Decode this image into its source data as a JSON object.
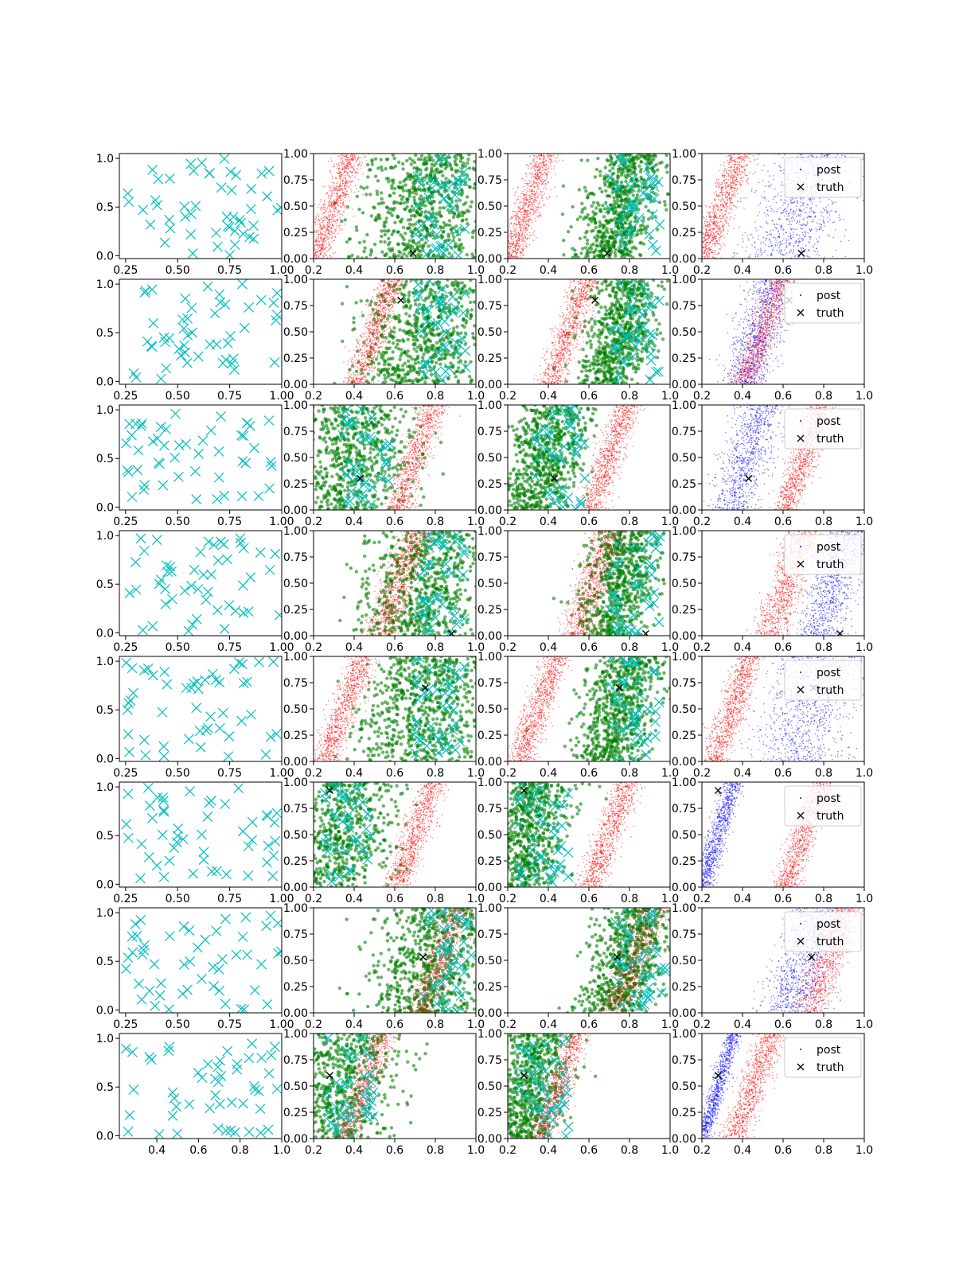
{
  "figure": {
    "rows": 8,
    "cols": 4,
    "colors": {
      "design": "#00bfbf",
      "prior": "#ff0000",
      "likelihood": "#008000",
      "posterior": "#0000ff",
      "truth": "#000000"
    },
    "legend": {
      "post_label": "post",
      "truth_label": "truth",
      "placement": "upper right"
    }
  },
  "chart_data": {
    "type": "scatter",
    "design_axes": {
      "xlim": [
        0.22,
        1.0
      ],
      "ylim": [
        -0.03,
        1.05
      ],
      "xticks": [
        "0.25",
        "0.50",
        "0.75",
        "1.00"
      ],
      "xticks_last_row": [
        "0.4",
        "0.6",
        "0.8",
        "1.0"
      ],
      "yticks": [
        "0.0",
        "0.5",
        "1.0"
      ]
    },
    "param_axes": {
      "xlim": [
        0.2,
        1.0
      ],
      "ylim": [
        0.0,
        1.0
      ],
      "xticks": [
        "0.2",
        "0.4",
        "0.6",
        "0.8",
        "1.0"
      ],
      "yticks": [
        "0.00",
        "0.25",
        "0.50",
        "0.75",
        "1.00"
      ]
    },
    "rows": [
      {
        "truth": [
          0.69,
          0.05
        ],
        "red": [
          0.3,
          0.07
        ],
        "green": [
          0.75,
          0.3
        ],
        "blue": [
          0.68,
          0.22
        ]
      },
      {
        "truth": [
          0.63,
          0.8
        ],
        "red": [
          0.5,
          0.07
        ],
        "green": [
          0.75,
          0.3
        ],
        "blue": [
          0.48,
          0.12
        ]
      },
      {
        "truth": [
          0.43,
          0.3
        ],
        "red": [
          0.7,
          0.07
        ],
        "green": [
          0.38,
          0.3
        ],
        "blue": [
          0.42,
          0.12
        ]
      },
      {
        "truth": [
          0.88,
          0.02
        ],
        "red": [
          0.62,
          0.09
        ],
        "green": [
          0.75,
          0.3
        ],
        "blue": [
          0.85,
          0.12
        ]
      },
      {
        "truth": [
          0.75,
          0.7
        ],
        "red": [
          0.35,
          0.07
        ],
        "green": [
          0.75,
          0.3
        ],
        "blue": [
          0.72,
          0.22
        ]
      },
      {
        "truth": [
          0.28,
          0.92
        ],
        "red": [
          0.7,
          0.07
        ],
        "green": [
          0.3,
          0.3
        ],
        "blue": [
          0.28,
          0.05
        ]
      },
      {
        "truth": [
          0.74,
          0.53
        ],
        "red": [
          0.82,
          0.09
        ],
        "green": [
          0.78,
          0.3
        ],
        "blue": [
          0.7,
          0.14
        ]
      },
      {
        "truth": [
          0.28,
          0.6
        ],
        "red": [
          0.45,
          0.07
        ],
        "green": [
          0.3,
          0.3
        ],
        "blue": [
          0.28,
          0.04
        ]
      }
    ]
  }
}
